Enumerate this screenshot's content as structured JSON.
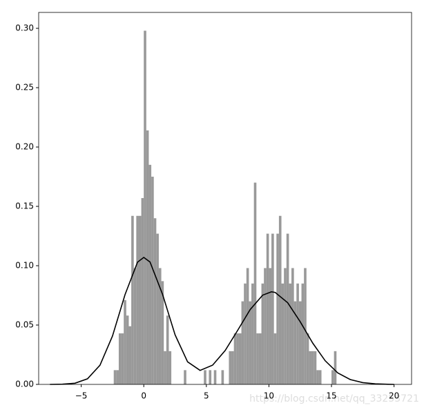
{
  "chart_data": {
    "type": "histogram",
    "bins": [
      -2.4,
      -2.2,
      -2.0,
      -1.8,
      -1.6,
      -1.4,
      -1.2,
      -1.0,
      -0.8,
      -0.6,
      -0.4,
      -0.2,
      0.0,
      0.2,
      0.4,
      0.6,
      0.8,
      1.0,
      1.2,
      1.4,
      1.6,
      1.8,
      2.0,
      2.2,
      2.4,
      2.6,
      2.8,
      3.0,
      3.2,
      3.4,
      3.6,
      3.8,
      4.0,
      4.2,
      4.4,
      4.6,
      4.8,
      5.0,
      5.2,
      5.4,
      5.6,
      5.8,
      6.0,
      6.2,
      6.4,
      6.6,
      6.8,
      7.0,
      7.2,
      7.4,
      7.6,
      7.8,
      8.0,
      8.2,
      8.4,
      8.6,
      8.8,
      9.0,
      9.2,
      9.4,
      9.6,
      9.8,
      10.0,
      10.2,
      10.4,
      10.6,
      10.8,
      11.0,
      11.2,
      11.4,
      11.6,
      11.8,
      12.0,
      12.2,
      12.4,
      12.6,
      12.8,
      13.0,
      13.2,
      13.4,
      13.6,
      13.8,
      14.0,
      14.2,
      14.4,
      14.6,
      14.8,
      15.0,
      15.2,
      15.4
    ],
    "values": [
      0.012,
      0.012,
      0.043,
      0.043,
      0.071,
      0.058,
      0.049,
      0.142,
      0.098,
      0.142,
      0.142,
      0.157,
      0.298,
      0.214,
      0.185,
      0.175,
      0.14,
      0.127,
      0.098,
      0.087,
      0.028,
      0.058,
      0.028,
      0,
      0,
      0,
      0,
      0,
      0.012,
      0,
      0,
      0,
      0,
      0,
      0,
      0,
      0.012,
      0,
      0.012,
      0,
      0.012,
      0,
      0,
      0.012,
      0,
      0,
      0.028,
      0.028,
      0.043,
      0.043,
      0.043,
      0.07,
      0.085,
      0.098,
      0.07,
      0.085,
      0.17,
      0.043,
      0.043,
      0.085,
      0.098,
      0.127,
      0.098,
      0.127,
      0.043,
      0.127,
      0.142,
      0.085,
      0.098,
      0.127,
      0.085,
      0.098,
      0.07,
      0.085,
      0.07,
      0.085,
      0.098,
      0.043,
      0.028,
      0.028,
      0.028,
      0.012,
      0.012,
      0,
      0,
      0,
      0,
      0.012,
      0.028
    ],
    "color": "#999999",
    "curve": {
      "color": "#000000",
      "x": [
        -7.5,
        -6.5,
        -5.5,
        -4.5,
        -3.5,
        -2.5,
        -1.5,
        -0.5,
        0,
        0.5,
        1.5,
        2.5,
        3.5,
        4.5,
        5.5,
        6.5,
        7.5,
        8.5,
        9.5,
        10.2,
        10.5,
        11.5,
        12.5,
        13.5,
        14.5,
        15.5,
        16.5,
        17.5,
        18.5,
        19.5,
        20
      ],
      "y": [
        0.0,
        0.0002,
        0.001,
        0.0047,
        0.0162,
        0.0408,
        0.0756,
        0.103,
        0.107,
        0.1031,
        0.0759,
        0.0418,
        0.019,
        0.0118,
        0.0162,
        0.0285,
        0.0455,
        0.063,
        0.0752,
        0.078,
        0.0775,
        0.0688,
        0.0528,
        0.0348,
        0.0199,
        0.0097,
        0.0041,
        0.0015,
        0.0005,
        0.0001,
        0.0
      ]
    },
    "xlim": [
      -8.4,
      21.4
    ],
    "xticks": [
      {
        "value": -5,
        "label": "−5"
      },
      0,
      5,
      10,
      15,
      20
    ],
    "ylim": [
      0,
      0.3134
    ],
    "yticks": [
      {
        "value": 0,
        "label": "0.00"
      },
      {
        "value": 0.05,
        "label": "0.05"
      },
      {
        "value": 0.1,
        "label": "0.10"
      },
      {
        "value": 0.15,
        "label": "0.15"
      },
      {
        "value": 0.2,
        "label": "0.20"
      },
      {
        "value": 0.25,
        "label": "0.25"
      },
      {
        "value": 0.3,
        "label": "0.30"
      }
    ],
    "watermark": "https://blog.csdn.net/qq_33253721"
  }
}
